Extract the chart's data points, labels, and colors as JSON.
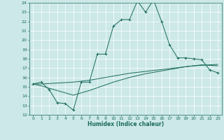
{
  "title": "",
  "xlabel": "Humidex (Indice chaleur)",
  "bg_color": "#cce8e8",
  "grid_color": "#aad4d4",
  "line_color": "#1a6b5a",
  "x_min": -0.5,
  "x_max": 23.5,
  "y_min": 12,
  "y_max": 24,
  "x_ticks": [
    0,
    1,
    2,
    3,
    4,
    5,
    6,
    7,
    8,
    9,
    10,
    11,
    12,
    13,
    14,
    15,
    16,
    17,
    18,
    19,
    20,
    21,
    22,
    23
  ],
  "y_ticks": [
    12,
    13,
    14,
    15,
    16,
    17,
    18,
    19,
    20,
    21,
    22,
    23,
    24
  ],
  "line1_x": [
    0,
    1,
    2,
    3,
    4,
    5,
    6,
    7,
    8,
    9,
    10,
    11,
    12,
    13,
    14,
    15,
    16,
    17,
    18,
    19,
    20,
    21,
    22,
    23
  ],
  "line1_y": [
    15.3,
    15.5,
    14.7,
    13.3,
    13.2,
    12.5,
    15.5,
    15.5,
    18.5,
    18.5,
    21.5,
    22.2,
    22.2,
    24.2,
    23.0,
    24.3,
    22.0,
    19.5,
    18.1,
    18.1,
    18.0,
    17.9,
    16.8,
    16.5
  ],
  "line2_x": [
    0,
    1,
    2,
    3,
    4,
    5,
    6,
    7,
    8,
    9,
    10,
    11,
    12,
    13,
    14,
    15,
    16,
    17,
    18,
    19,
    20,
    21,
    22,
    23
  ],
  "line2_y": [
    15.3,
    15.3,
    15.35,
    15.4,
    15.45,
    15.5,
    15.6,
    15.7,
    15.85,
    16.0,
    16.15,
    16.3,
    16.45,
    16.55,
    16.65,
    16.75,
    16.85,
    16.95,
    17.05,
    17.15,
    17.25,
    17.3,
    17.35,
    17.4
  ],
  "line3_x": [
    0,
    1,
    2,
    3,
    4,
    5,
    6,
    7,
    8,
    9,
    10,
    11,
    12,
    13,
    14,
    15,
    16,
    17,
    18,
    19,
    20,
    21,
    22,
    23
  ],
  "line3_y": [
    15.3,
    15.1,
    14.85,
    14.6,
    14.35,
    14.1,
    14.35,
    14.6,
    14.9,
    15.2,
    15.5,
    15.75,
    16.0,
    16.2,
    16.4,
    16.55,
    16.7,
    16.85,
    17.0,
    17.15,
    17.25,
    17.35,
    17.3,
    17.25
  ]
}
